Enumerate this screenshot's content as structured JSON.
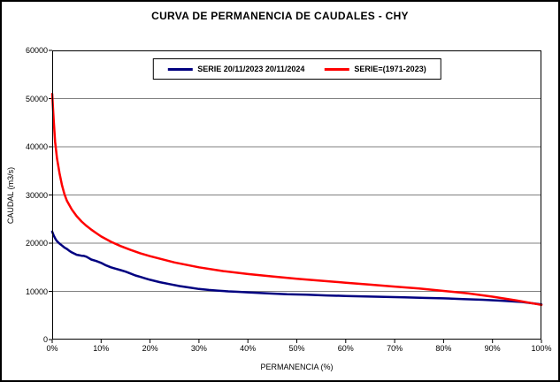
{
  "chart_data": {
    "type": "line",
    "title": "CURVA DE PERMANENCIA DE CAUDALES - CHY",
    "xlabel": "PERMANENCIA (%)",
    "ylabel": "CAUDAL (m3/s)",
    "xlim": [
      0,
      100
    ],
    "ylim": [
      0,
      60000
    ],
    "x_tick_values": [
      0,
      10,
      20,
      30,
      40,
      50,
      60,
      70,
      80,
      90,
      100
    ],
    "x_tick_labels": [
      "0%",
      "10%",
      "20%",
      "30%",
      "40%",
      "50%",
      "60%",
      "70%",
      "80%",
      "90%",
      "100%"
    ],
    "y_tick_values": [
      0,
      10000,
      20000,
      30000,
      40000,
      50000,
      60000
    ],
    "y_tick_labels": [
      "0",
      "10000",
      "20000",
      "30000",
      "40000",
      "50000",
      "60000"
    ],
    "grid": "horizontal",
    "legend_position": "top-center",
    "colors": {
      "grid": "#808080",
      "axis": "#000000",
      "background": "#ffffff",
      "frame_border": "#000000"
    },
    "series": [
      {
        "name": "SERIE 20/11/2023 20/11/2024",
        "color": "#000080",
        "x": [
          0,
          0.3,
          0.7,
          1,
          1.5,
          2,
          2.5,
          3,
          3.5,
          4,
          5,
          5.5,
          6,
          6.5,
          7,
          7.5,
          8,
          9,
          10,
          11,
          12,
          13,
          14,
          15,
          16,
          17,
          18,
          19,
          20,
          22,
          24,
          26,
          28,
          30,
          32,
          34,
          36,
          38,
          40,
          44,
          48,
          52,
          56,
          60,
          64,
          68,
          72,
          76,
          80,
          84,
          88,
          92,
          96,
          100
        ],
        "y": [
          22400,
          21600,
          20800,
          20400,
          19900,
          19500,
          19100,
          18800,
          18400,
          18100,
          17600,
          17500,
          17400,
          17350,
          17200,
          16900,
          16600,
          16300,
          15900,
          15400,
          15000,
          14700,
          14400,
          14100,
          13700,
          13300,
          13000,
          12700,
          12400,
          11900,
          11500,
          11100,
          10800,
          10500,
          10300,
          10150,
          10000,
          9900,
          9800,
          9600,
          9400,
          9300,
          9150,
          9050,
          8950,
          8850,
          8750,
          8650,
          8550,
          8400,
          8250,
          8050,
          7800,
          7300
        ]
      },
      {
        "name": "SERIE=(1971-2023)",
        "color": "#ff0000",
        "x": [
          0,
          0.3,
          0.6,
          1,
          1.5,
          2,
          2.5,
          3,
          4,
          5,
          6,
          7,
          8,
          9,
          10,
          12,
          14,
          16,
          18,
          20,
          25,
          30,
          35,
          40,
          45,
          50,
          55,
          60,
          65,
          70,
          75,
          80,
          85,
          90,
          95,
          100
        ],
        "y": [
          51000,
          45500,
          41000,
          37500,
          34500,
          32000,
          30200,
          28800,
          27000,
          25600,
          24500,
          23600,
          22800,
          22100,
          21400,
          20300,
          19400,
          18600,
          17900,
          17300,
          16000,
          15000,
          14200,
          13600,
          13100,
          12600,
          12200,
          11800,
          11400,
          11000,
          10600,
          10100,
          9600,
          8900,
          8100,
          7200
        ]
      }
    ]
  }
}
